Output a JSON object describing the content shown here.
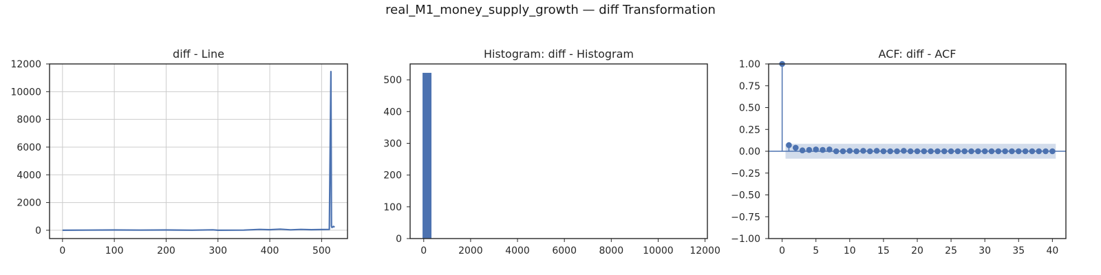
{
  "figure": {
    "suptitle": "real_M1_money_supply_growth — diff Transformation"
  },
  "colors": {
    "series": "#4c72b0",
    "band": "#4c72b0",
    "grid": "#cccccc",
    "axis": "#262626"
  },
  "chart_data": [
    {
      "type": "line",
      "title": "diff - Line",
      "grid": true,
      "xlim": [
        -25,
        550
      ],
      "ylim": [
        -600,
        12000
      ],
      "xticks": [
        0,
        100,
        200,
        300,
        400,
        500
      ],
      "yticks": [
        0,
        2000,
        4000,
        6000,
        8000,
        10000,
        12000
      ],
      "series": [
        {
          "x": [
            0,
            50,
            100,
            150,
            200,
            250,
            290,
            300,
            350,
            380,
            400,
            420,
            440,
            460,
            480,
            500,
            515,
            518,
            519,
            520,
            523,
            525
          ],
          "y": [
            0,
            10,
            20,
            10,
            20,
            5,
            30,
            0,
            10,
            60,
            40,
            80,
            30,
            60,
            40,
            50,
            60,
            11450,
            300,
            200,
            280,
            220
          ]
        }
      ]
    },
    {
      "type": "bar",
      "title": "Histogram: diff - Histogram",
      "grid": false,
      "xlim": [
        -580,
        12100
      ],
      "ylim": [
        0,
        550
      ],
      "xticks": [
        0,
        2000,
        4000,
        6000,
        8000,
        10000,
        12000
      ],
      "yticks": [
        0,
        100,
        200,
        300,
        400,
        500
      ],
      "bins": [
        {
          "x0": -50,
          "x1": 330,
          "count": 522
        }
      ]
    },
    {
      "type": "scatter",
      "title": "ACF: diff - ACF",
      "grid": false,
      "xlim": [
        -2,
        42
      ],
      "ylim": [
        -1.0,
        1.0
      ],
      "xticks": [
        0,
        5,
        10,
        15,
        20,
        25,
        30,
        35,
        40
      ],
      "ytick_labels": [
        "1.00",
        "0.75",
        "0.50",
        "0.25",
        "0.00",
        "−0.25",
        "−0.50",
        "−0.75",
        "−1.00"
      ],
      "yticks": [
        1.0,
        0.75,
        0.5,
        0.25,
        0.0,
        -0.25,
        -0.5,
        -0.75,
        -1.0
      ],
      "lags": [
        0,
        1,
        2,
        3,
        4,
        5,
        6,
        7,
        8,
        9,
        10,
        11,
        12,
        13,
        14,
        15,
        16,
        17,
        18,
        19,
        20,
        21,
        22,
        23,
        24,
        25,
        26,
        27,
        28,
        29,
        30,
        31,
        32,
        33,
        34,
        35,
        36,
        37,
        38,
        39,
        40
      ],
      "acf": [
        1.0,
        0.07,
        0.04,
        0.01,
        0.015,
        0.02,
        0.015,
        0.02,
        0.0,
        0.0,
        0.005,
        0.0,
        0.005,
        0.0,
        0.005,
        0.0,
        0.0,
        0.0,
        0.005,
        0.0,
        0.0,
        0.0,
        0.0,
        0.0,
        0.0,
        0.0,
        0.0,
        0.0,
        0.0,
        0.0,
        0.0,
        0.0,
        0.0,
        0.0,
        0.0,
        0.0,
        0.0,
        0.0,
        0.0,
        0.0,
        0.0
      ],
      "confidence_band": 0.085
    }
  ]
}
